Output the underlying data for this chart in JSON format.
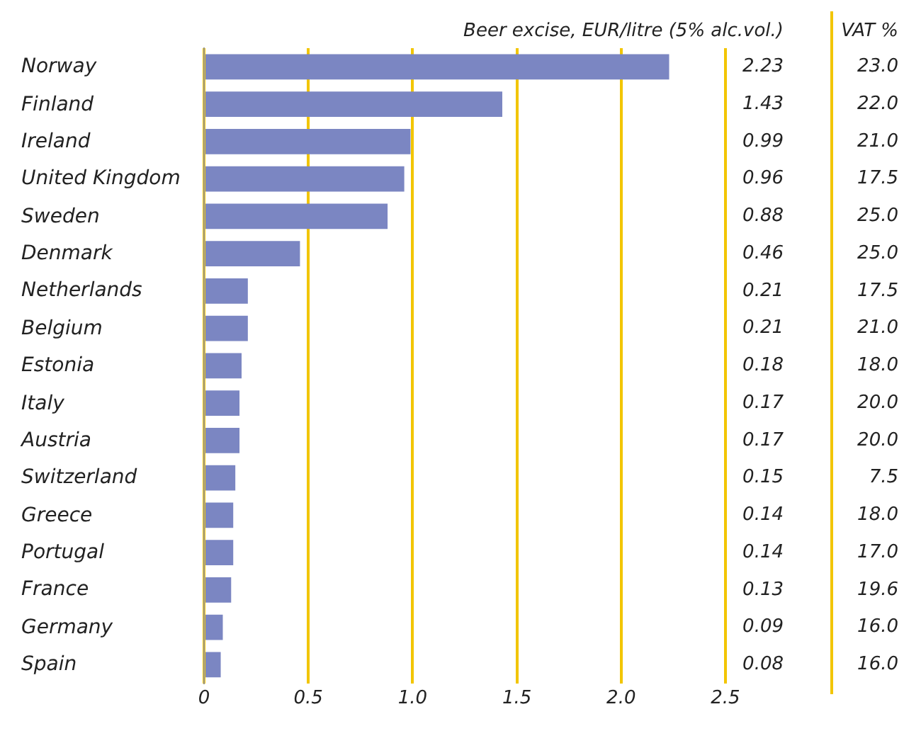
{
  "chart_data": {
    "type": "bar",
    "orientation": "horizontal",
    "title": "Beer excise, EUR/litre (5% alc.vol.)",
    "categories": [
      "Norway",
      "Finland",
      "Ireland",
      "United Kingdom",
      "Sweden",
      "Denmark",
      "Netherlands",
      "Belgium",
      "Estonia",
      "Italy",
      "Austria",
      "Switzerland",
      "Greece",
      "Portugal",
      "France",
      "Germany",
      "Spain"
    ],
    "values": [
      2.23,
      1.43,
      0.99,
      0.96,
      0.88,
      0.46,
      0.21,
      0.21,
      0.18,
      0.17,
      0.17,
      0.15,
      0.14,
      0.14,
      0.13,
      0.09,
      0.08
    ],
    "color": "#7b86c2",
    "xlim": [
      0,
      2.5
    ],
    "xticks": [
      0,
      {
        "value": 0.5,
        "label": "0.5"
      },
      {
        "value": 1,
        "label": "1.0"
      },
      {
        "value": 1.5,
        "label": "1.5"
      },
      {
        "value": 2,
        "label": "2.0"
      },
      {
        "value": 2.5,
        "label": "2.5"
      }
    ],
    "grid": "x",
    "data_labels": true,
    "annotations": [
      "VAT %",
      "23.0",
      "22.0",
      "21.0",
      "17.5",
      "25.0",
      "25.0",
      "17.5",
      "21.0",
      "18.0",
      "20.0",
      "20.0",
      "7.5",
      "18.0",
      "17.0",
      "19.6",
      "16.0",
      "16.0"
    ]
  }
}
